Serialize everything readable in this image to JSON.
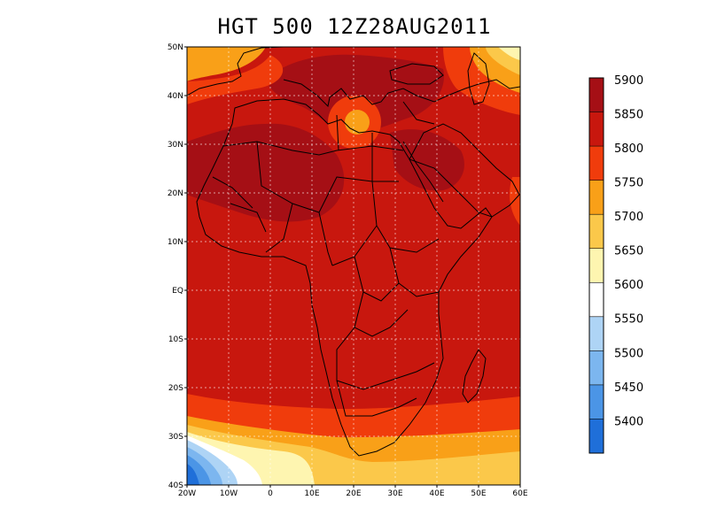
{
  "title": "HGT 500 12Z28AUG2011",
  "map": {
    "lon_ticks": [
      "20W",
      "10W",
      "0",
      "10E",
      "20E",
      "30E",
      "40E",
      "50E",
      "60E"
    ],
    "lat_ticks": [
      "50N",
      "40N",
      "30N",
      "20N",
      "10N",
      "EQ",
      "10S",
      "20S",
      "30S",
      "40S"
    ],
    "lon_range": [
      -20,
      60
    ],
    "lat_range": [
      -40,
      50
    ],
    "grid": true
  },
  "colorbar": {
    "labels": [
      "5900",
      "5850",
      "5800",
      "5750",
      "5700",
      "5650",
      "5600",
      "5550",
      "5500",
      "5450",
      "5400"
    ],
    "colors": [
      "#a50f15",
      "#c8170e",
      "#f03c0c",
      "#f9a018",
      "#fbc84a",
      "#fef5b0",
      "#ffffff",
      "#aed4f5",
      "#7cb6ef",
      "#4b95e6",
      "#1f6fd9"
    ]
  },
  "field_colors": {
    "top": "#a50f15",
    "main": "#c8170e",
    "band1": "#f03c0c",
    "band2": "#f9a018",
    "band3": "#fbc84a",
    "band4": "#fef5b0",
    "white": "#ffffff",
    "blue1": "#aed4f5",
    "blue2": "#7cb6ef",
    "blue3": "#4b95e6",
    "blue4": "#1f6fd9"
  }
}
